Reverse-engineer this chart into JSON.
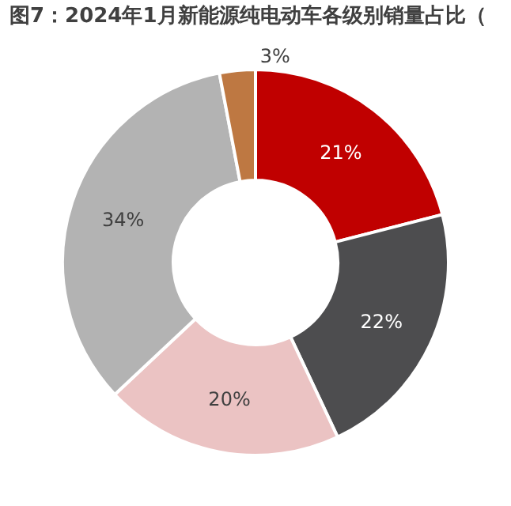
{
  "chart_data": {
    "type": "donut",
    "title": "图7：2024年1月新能源纯电动车各级别销量占比（",
    "categories": [
      null,
      null,
      null,
      null,
      null
    ],
    "values": [
      21,
      22,
      20,
      34,
      3
    ],
    "value_labels": [
      "21%",
      "22%",
      "20%",
      "34%",
      "3%"
    ],
    "colors": [
      "#c00000",
      "#4d4d4f",
      "#ebc3c3",
      "#b3b3b3",
      "#be7842"
    ],
    "legend": false
  }
}
